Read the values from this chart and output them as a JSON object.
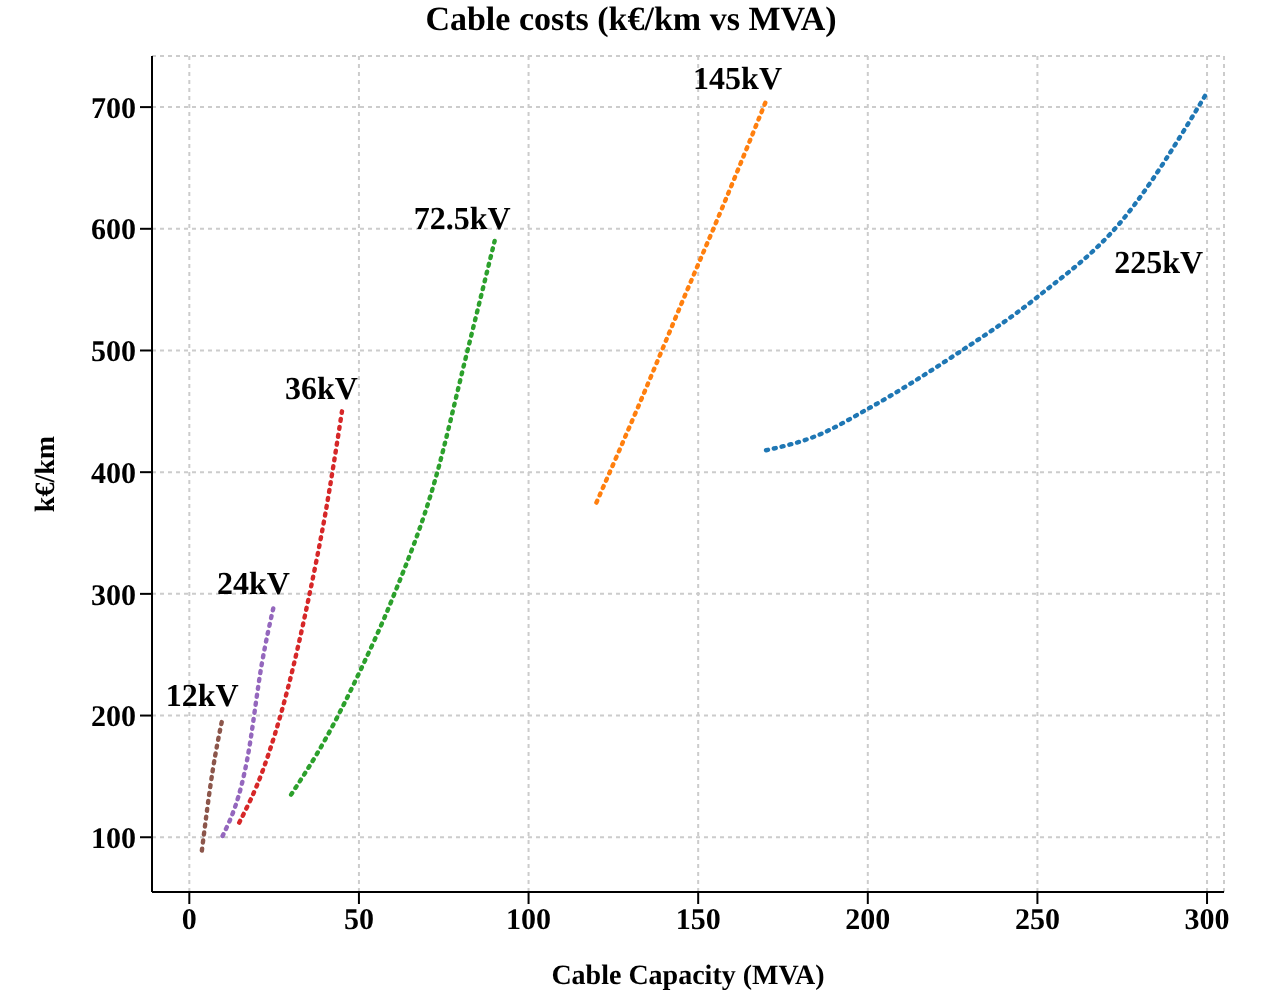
{
  "chart_data": {
    "type": "line",
    "title": "Cable costs (k€/km vs MVA)",
    "xlabel": "Cable Capacity (MVA)",
    "ylabel": "k€/km",
    "line_style": "dotted",
    "marker": "none",
    "grid": true,
    "legend": false,
    "xlim": [
      -11,
      305
    ],
    "xticks": [
      0,
      50,
      100,
      150,
      200,
      250,
      300
    ],
    "ylim": [
      55,
      742
    ],
    "yticks": [
      100,
      200,
      300,
      400,
      500,
      600,
      700
    ],
    "series": [
      {
        "name": "225kV",
        "color": "#1f77b4",
        "x": [
          170,
          185,
          200,
          225,
          250,
          275,
          300
        ],
        "values": [
          418,
          430,
          452,
          495,
          544,
          607,
          712
        ]
      },
      {
        "name": "145kV",
        "color": "#ff7f0e",
        "x": [
          120,
          132.5,
          145,
          157.5,
          170
        ],
        "values": [
          375,
          455,
          538,
          620,
          705
        ]
      },
      {
        "name": "72.5kV",
        "color": "#2ca02c",
        "x": [
          30,
          40,
          50.4,
          60,
          72.6,
          81.3,
          90
        ],
        "values": [
          135,
          180,
          237,
          297,
          395,
          492,
          590
        ]
      },
      {
        "name": "36kV",
        "color": "#d62728",
        "x": [
          14.7,
          21.4,
          29.1,
          35.3,
          40.1,
          45
        ],
        "values": [
          112,
          153,
          223,
          298,
          366,
          450
        ]
      },
      {
        "name": "24kV",
        "color": "#9467bd",
        "x": [
          9.8,
          17.2,
          21.4,
          24.9
        ],
        "values": [
          101,
          166,
          243,
          290
        ]
      },
      {
        "name": "12kV",
        "color": "#8c564b",
        "x": [
          3.7,
          6.9,
          9.8
        ],
        "values": [
          89,
          155,
          198
        ]
      }
    ]
  }
}
